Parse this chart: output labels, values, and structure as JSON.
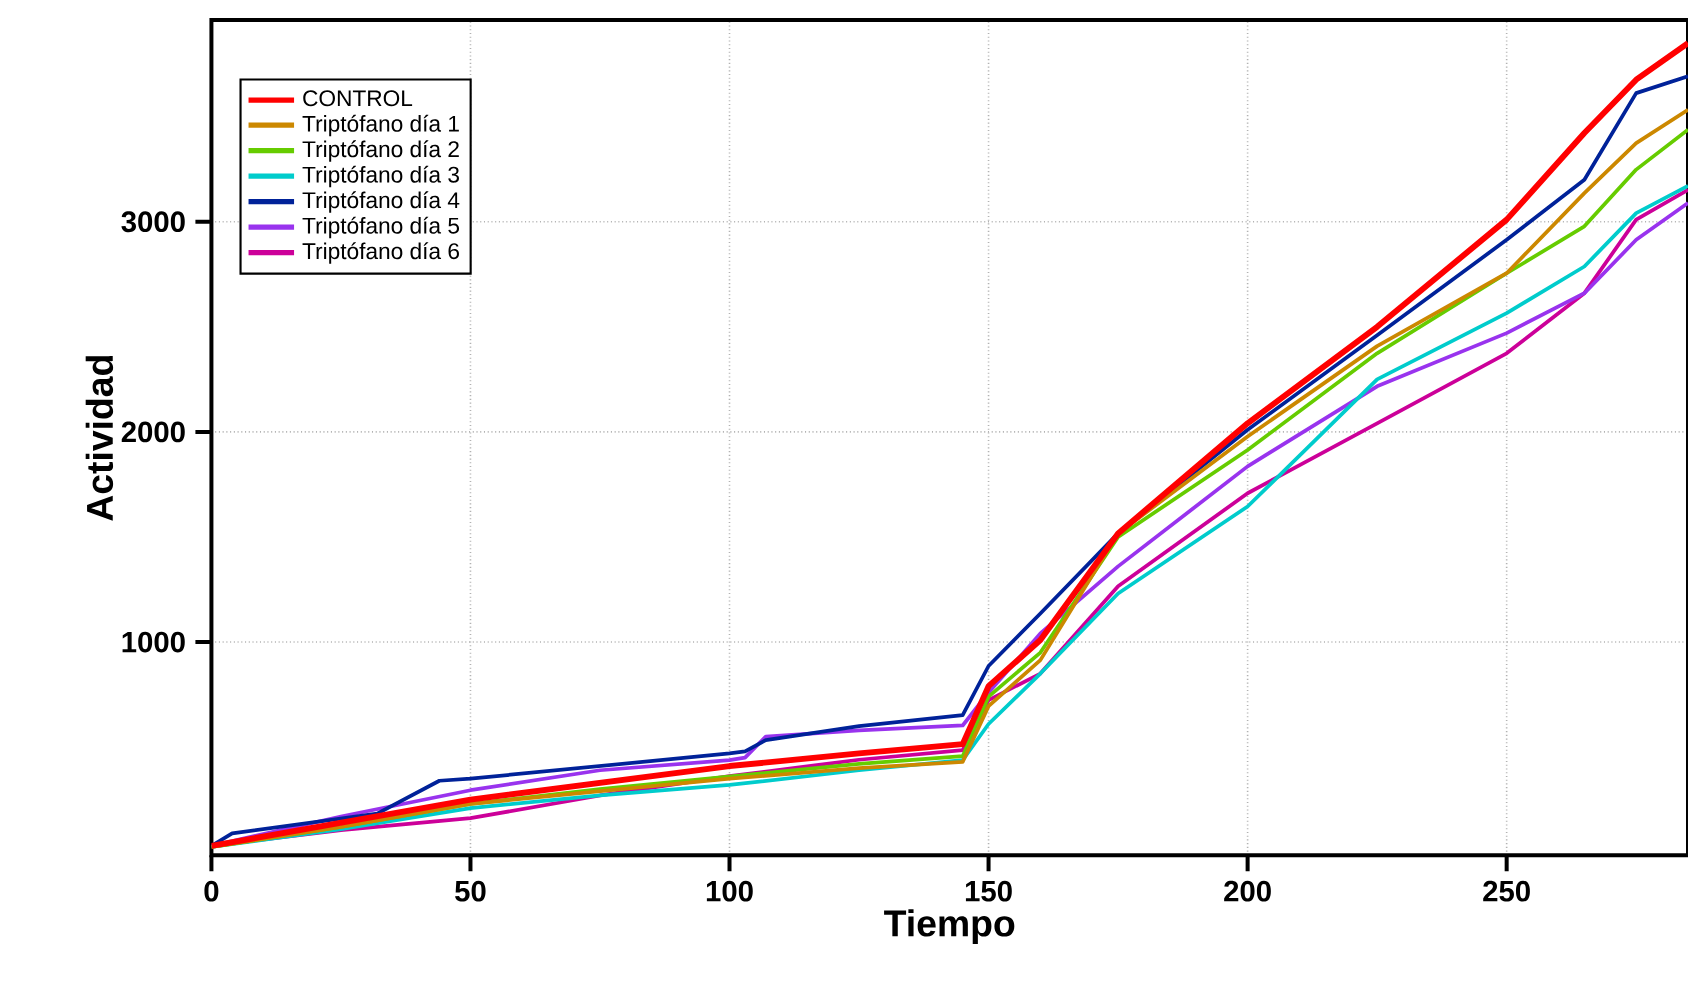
{
  "chart_data": {
    "type": "line",
    "xlabel": "Tiempo",
    "ylabel": "Actividad",
    "xlim": [
      0,
      285
    ],
    "ylim": [
      -15,
      3960
    ],
    "xticks": [
      0,
      50,
      100,
      150,
      200,
      250
    ],
    "yticks": [
      1000,
      2000,
      3000
    ],
    "grid": true,
    "legend": "top left",
    "line_style": "solid",
    "marker": "none",
    "series": [
      {
        "name": "CONTROL",
        "color": "#ff0000",
        "x": [
          0,
          25,
          50,
          75,
          100,
          125,
          145,
          150,
          160,
          175,
          200,
          225,
          250,
          265,
          275,
          285
        ],
        "values": [
          30,
          140,
          250,
          330,
          410,
          470,
          514,
          790,
          1010,
          1517,
          2041,
          2500,
          3010,
          3422,
          3676,
          3850
        ]
      },
      {
        "name": "Triptófano día 1",
        "color": "#cc8800",
        "x": [
          0,
          25,
          50,
          75,
          100,
          125,
          145,
          150,
          160,
          175,
          200,
          225,
          250,
          265,
          275,
          285
        ],
        "values": [
          25,
          120,
          230,
          290,
          350,
          400,
          430,
          695,
          914,
          1517,
          1978,
          2408,
          2755,
          3136,
          3374,
          3533
        ]
      },
      {
        "name": "Triptófano día 2",
        "color": "#66cc00",
        "x": [
          0,
          25,
          50,
          75,
          100,
          125,
          145,
          150,
          160,
          175,
          200,
          225,
          250,
          265,
          275,
          285
        ],
        "values": [
          25,
          120,
          230,
          300,
          360,
          420,
          457,
          740,
          950,
          1500,
          1914,
          2374,
          2755,
          2978,
          3248,
          3438
        ]
      },
      {
        "name": "Triptófano día 3",
        "color": "#00cccc",
        "x": [
          0,
          25,
          50,
          75,
          100,
          125,
          145,
          150,
          160,
          175,
          200,
          225,
          250,
          265,
          275,
          285
        ],
        "values": [
          25,
          110,
          210,
          270,
          320,
          390,
          438,
          610,
          850,
          1231,
          1645,
          2250,
          2565,
          2787,
          3041,
          3170
        ]
      },
      {
        "name": "Triptófano día 4",
        "color": "#002299",
        "x": [
          0,
          4,
          32,
          44,
          50,
          75,
          100,
          103,
          107,
          125,
          145,
          150,
          160,
          175,
          200,
          225,
          250,
          265,
          275,
          285
        ],
        "values": [
          30,
          90,
          184,
          340,
          350,
          410,
          470,
          480,
          533,
          600,
          652,
          886,
          1136,
          1517,
          2010,
          2460,
          2914,
          3200,
          3612,
          3692
        ]
      },
      {
        "name": "Triptófano día 5",
        "color": "#9933ee",
        "x": [
          0,
          25,
          50,
          75,
          100,
          103,
          107,
          125,
          145,
          150,
          160,
          175,
          200,
          225,
          250,
          265,
          275,
          285
        ],
        "values": [
          30,
          170,
          295,
          390,
          438,
          450,
          550,
          580,
          603,
          760,
          1041,
          1360,
          1836,
          2217,
          2470,
          2660,
          2914,
          3089
        ]
      },
      {
        "name": "Triptófano día 6",
        "color": "#cc0099",
        "x": [
          0,
          25,
          50,
          75,
          100,
          125,
          145,
          150,
          160,
          175,
          200,
          225,
          250,
          265,
          275,
          285
        ],
        "values": [
          30,
          105,
          162,
          270,
          362,
          440,
          486,
          724,
          850,
          1265,
          1708,
          2041,
          2374,
          2660,
          3010,
          3152
        ]
      }
    ]
  }
}
